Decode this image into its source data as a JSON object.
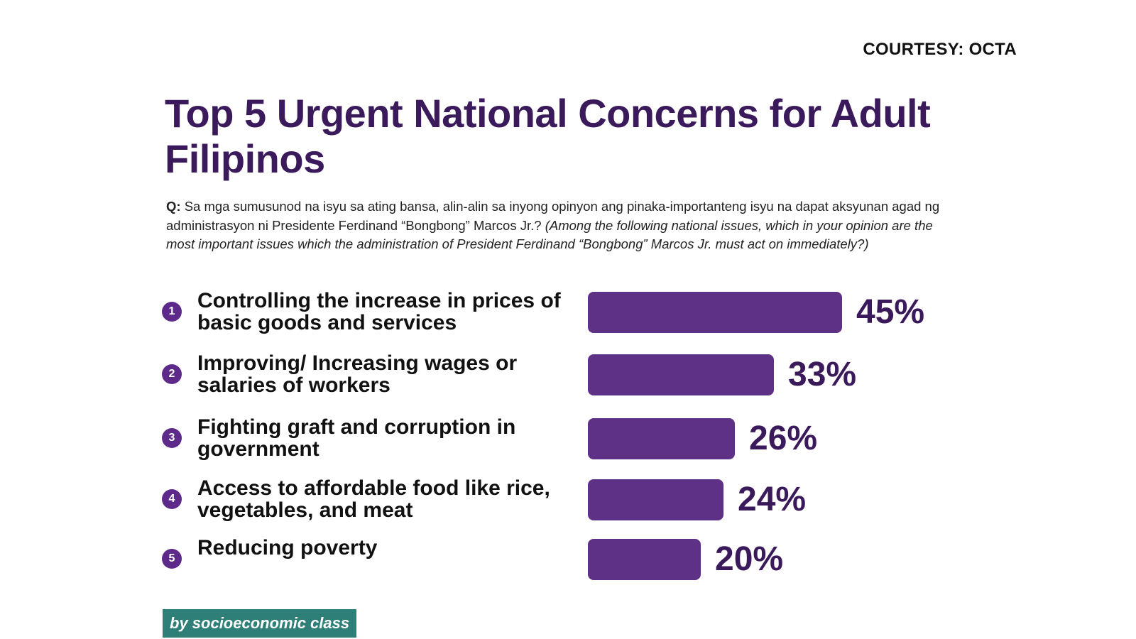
{
  "courtesy": "COURTESY: OCTA",
  "title": "Top 5 Urgent National Concerns for Adult Filipinos",
  "question": {
    "label": "Q:",
    "filipino": "Sa mga sumusunod na isyu sa ating bansa, alin-alin sa inyong opinyon ang pinaka-importanteng isyu na dapat aksyunan agad ng administrasyon ni Presidente Ferdinand “Bongbong” Marcos Jr.?",
    "english": "(Among the following national issues, which in your opinion are the most important issues which the administration of President Ferdinand “Bongbong” Marcos Jr. must act on immediately?)"
  },
  "chart_data": {
    "type": "bar",
    "orientation": "horizontal",
    "categories": [
      "Controlling the increase in prices of basic goods and services",
      "Improving/ Increasing wages or salaries of workers",
      "Fighting graft and corruption in government",
      "Access to affordable food like rice, vegetables, and meat",
      "Reducing poverty"
    ],
    "ranks": [
      "1",
      "2",
      "3",
      "4",
      "5"
    ],
    "values": [
      45,
      33,
      26,
      24,
      20
    ],
    "value_labels": [
      "45%",
      "33%",
      "26%",
      "24%",
      "20%"
    ],
    "bar_color": "#5e3186",
    "rank_badge_color": "#5e2a8a",
    "grid": false,
    "legend": "none"
  },
  "footer_tag": "by socioeconomic class",
  "colors": {
    "title": "#3b1a5c",
    "tag_background": "#2e7f77"
  }
}
